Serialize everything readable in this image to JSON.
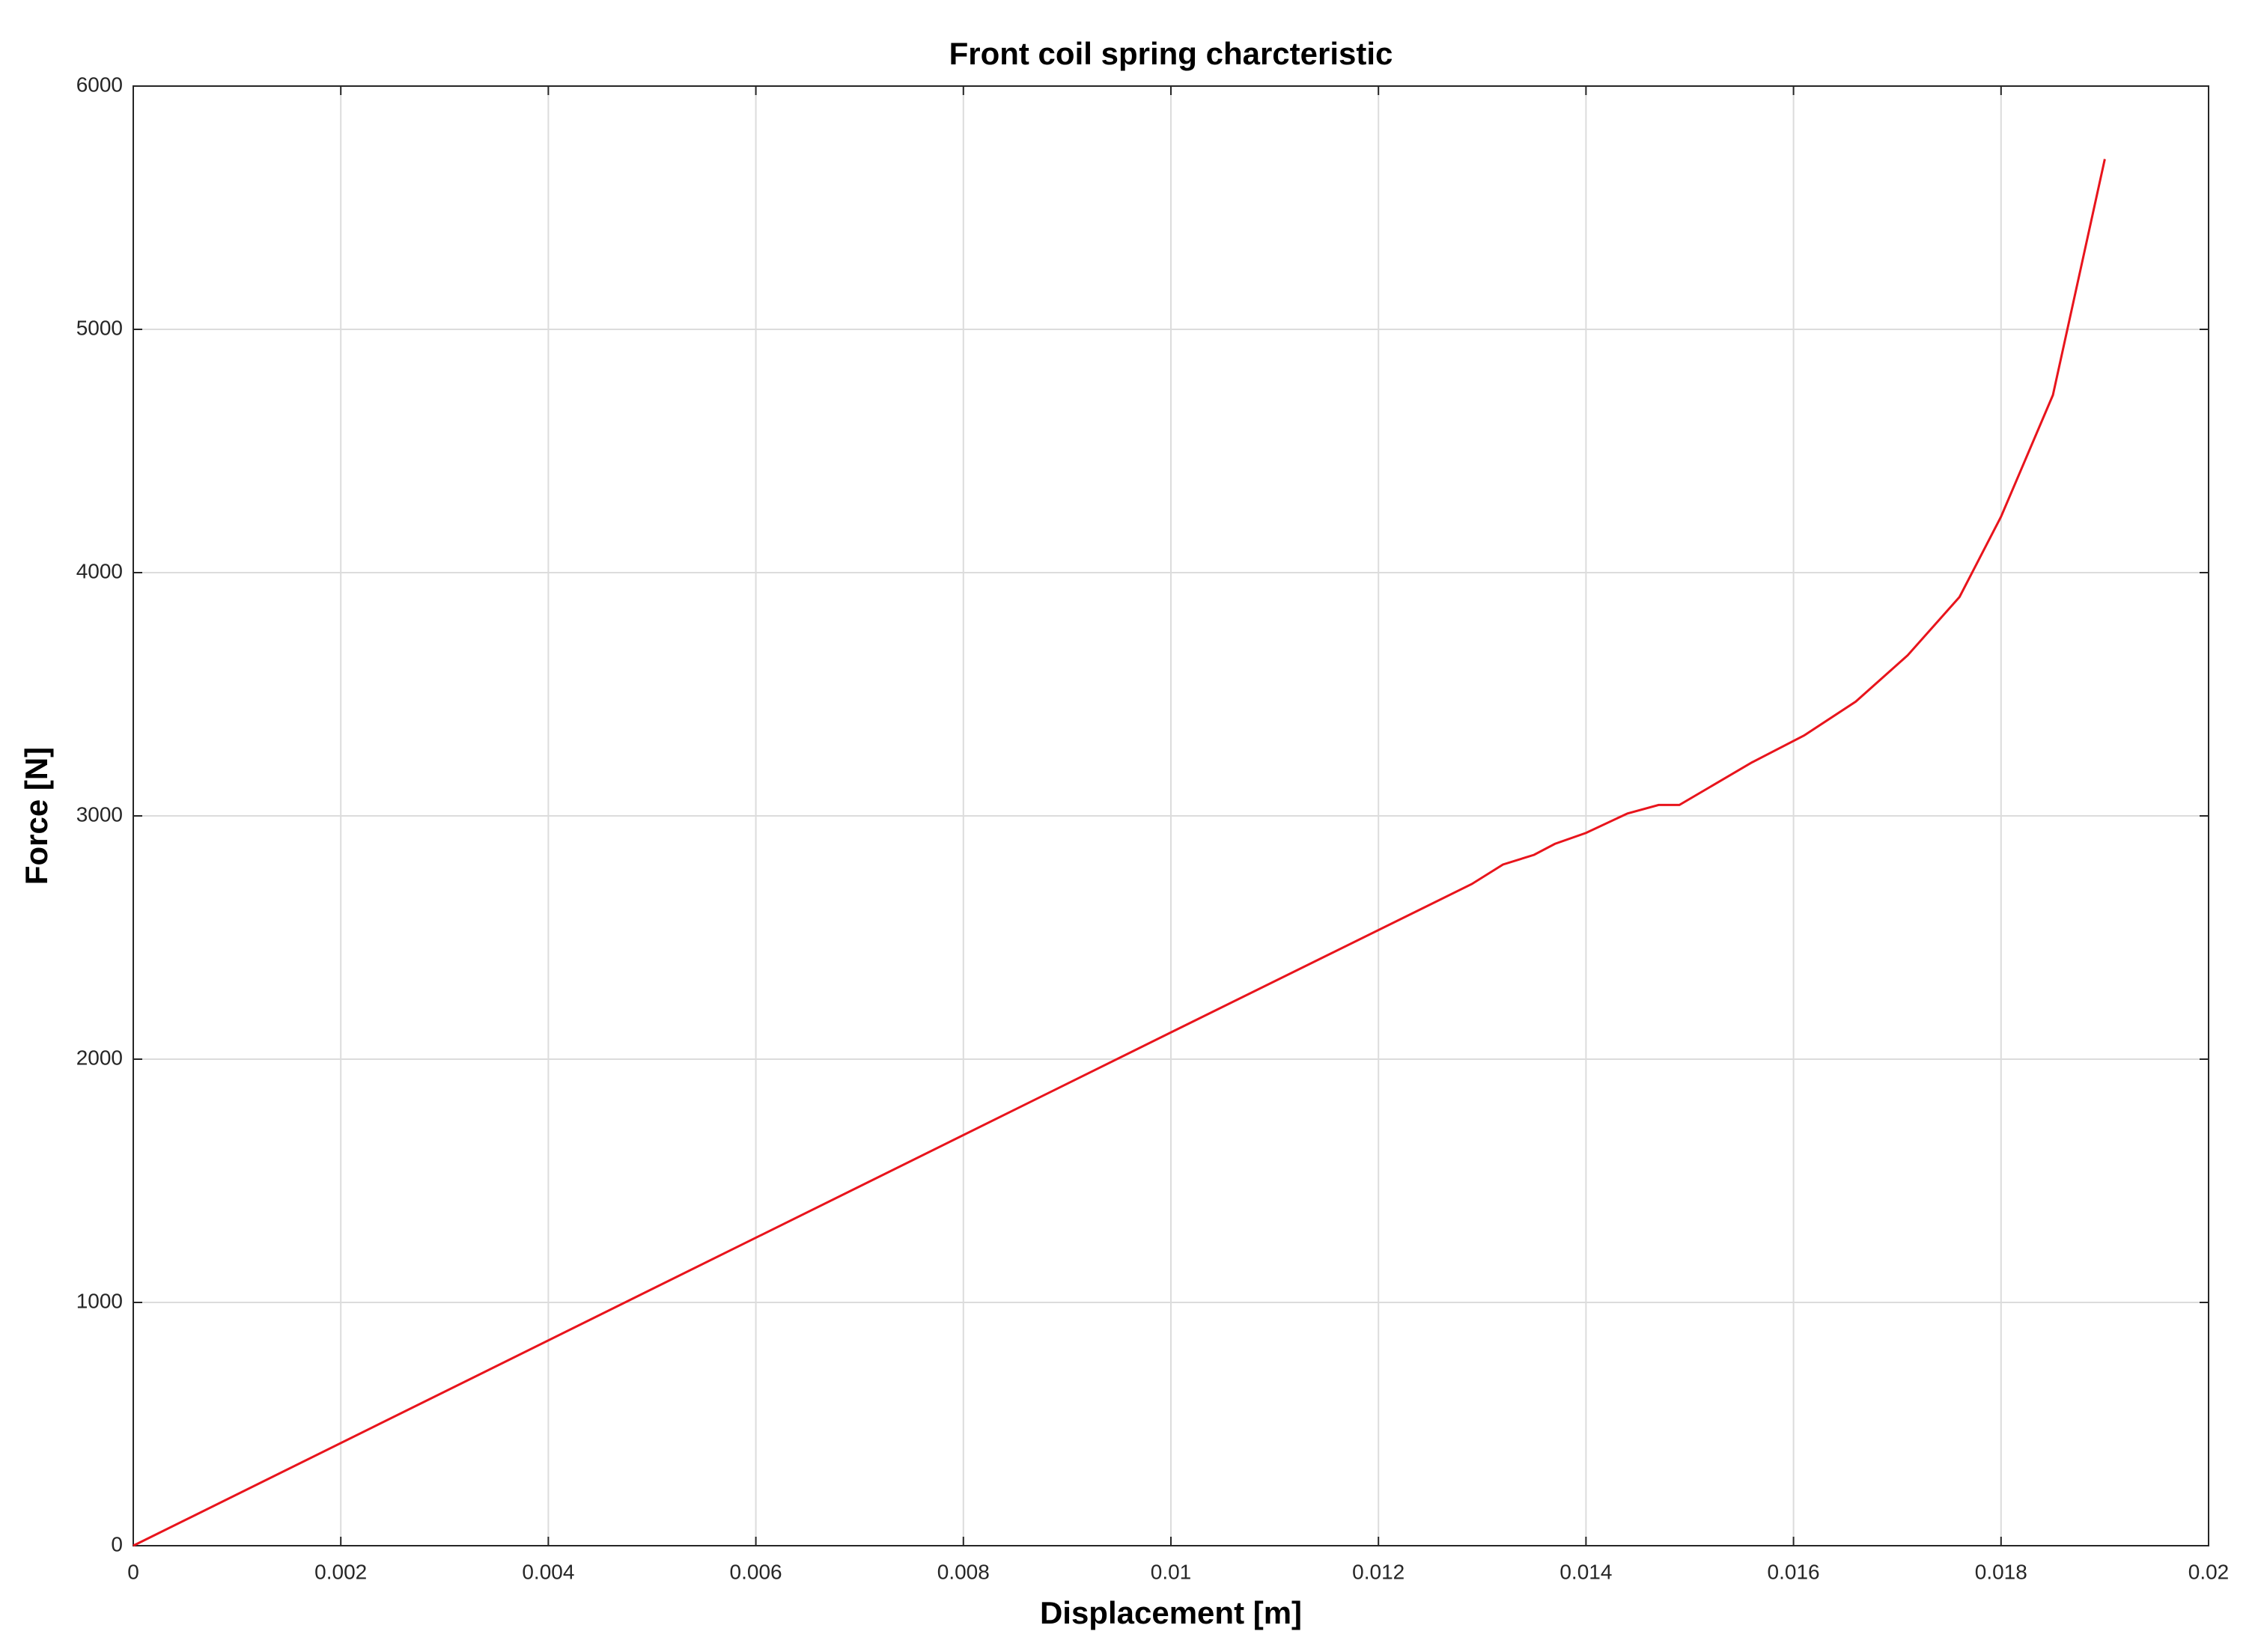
{
  "chart_data": {
    "type": "line",
    "title": "Front coil spring charcteristic",
    "x_label": "Displacement [m]",
    "y_label": "Force [N]",
    "x": [
      0,
      0.01,
      0.0129,
      0.0132,
      0.0135,
      0.0137,
      0.014,
      0.0144,
      0.0147,
      0.0149,
      0.0152,
      0.0156,
      0.0161,
      0.0166,
      0.0171,
      0.0176,
      0.018,
      0.0185,
      0.019
    ],
    "values": [
      0,
      2110,
      2720,
      2800,
      2840,
      2885,
      2930,
      3010,
      3045,
      3045,
      3120,
      3220,
      3330,
      3470,
      3660,
      3900,
      4230,
      4730,
      5700
    ],
    "color": "#e8141c",
    "xlim": [
      0,
      0.02
    ],
    "xticks": [
      0,
      0.002,
      0.004,
      0.006,
      0.008,
      0.01,
      0.012,
      0.014,
      0.016,
      0.018,
      0.02
    ],
    "ylim": [
      0,
      6000
    ],
    "yticks": [
      0,
      1000,
      2000,
      3000,
      4000,
      5000,
      6000
    ],
    "grid": true
  }
}
